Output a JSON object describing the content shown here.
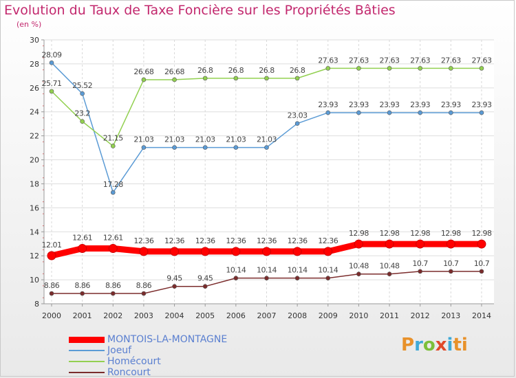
{
  "chart_data": {
    "type": "line",
    "title": "Evolution du Taux de Taxe Foncière sur les Propriétés Bâties",
    "ylabel": "(en %)",
    "x": [
      "2000",
      "2001",
      "2002",
      "2003",
      "2004",
      "2005",
      "2006",
      "2007",
      "2008",
      "2009",
      "2010",
      "2011",
      "2012",
      "2013",
      "2014"
    ],
    "ylim": [
      8,
      30
    ],
    "yticks": [
      8,
      10,
      12,
      14,
      16,
      18,
      20,
      22,
      24,
      26,
      28,
      30
    ],
    "series": [
      {
        "name": "MONTOIS-LA-MONTAGNE",
        "color": "#ff0000",
        "values": [
          12.01,
          12.61,
          12.61,
          12.36,
          12.36,
          12.36,
          12.36,
          12.36,
          12.36,
          12.36,
          12.98,
          12.98,
          12.98,
          12.98,
          12.98
        ],
        "labels": [
          "12.01",
          "12.61",
          "12.61",
          "12.36",
          "12.36",
          "12.36",
          "12.36",
          "12.36",
          "12.36",
          "12.36",
          "12.98",
          "12.98",
          "12.98",
          "12.98",
          "12.98"
        ]
      },
      {
        "name": "Joeuf",
        "color": "#5b9bd5",
        "values": [
          28.09,
          25.52,
          17.28,
          21.03,
          21.03,
          21.03,
          21.03,
          21.03,
          23.03,
          23.93,
          23.93,
          23.93,
          23.93,
          23.93,
          23.93
        ],
        "labels": [
          "28.09",
          "25.52",
          "17.28",
          "21.03",
          "21.03",
          "21.03",
          "21.03",
          "21.03",
          "23.03",
          "23.93",
          "23.93",
          "23.93",
          "23.93",
          "23.93",
          "23.93"
        ]
      },
      {
        "name": "Homécourt",
        "color": "#92d050",
        "values": [
          25.71,
          23.2,
          21.15,
          26.68,
          26.68,
          26.8,
          26.8,
          26.8,
          26.8,
          27.63,
          27.63,
          27.63,
          27.63,
          27.63,
          27.63
        ],
        "labels": [
          "25.71",
          "23.2",
          "21.15",
          "26.68",
          "26.68",
          "26.8",
          "26.8",
          "26.8",
          "26.8",
          "27.63",
          "27.63",
          "27.63",
          "27.63",
          "27.63",
          "27.63"
        ]
      },
      {
        "name": "Roncourt",
        "color": "#7b2c2c",
        "values": [
          8.86,
          8.86,
          8.86,
          8.86,
          9.45,
          9.45,
          10.14,
          10.14,
          10.14,
          10.14,
          10.48,
          10.48,
          10.7,
          10.7,
          10.7
        ],
        "labels": [
          "8.86",
          "8.86",
          "8.86",
          "8.86",
          "9.45",
          "9.45",
          "10.14",
          "10.14",
          "10.14",
          "10.14",
          "10.48",
          "10.48",
          "10.7",
          "10.7",
          "10.7"
        ]
      }
    ],
    "legend_position": "bottom-left"
  },
  "logo": {
    "letters": [
      "P",
      "r",
      "o",
      "x",
      "i",
      "ti"
    ]
  }
}
